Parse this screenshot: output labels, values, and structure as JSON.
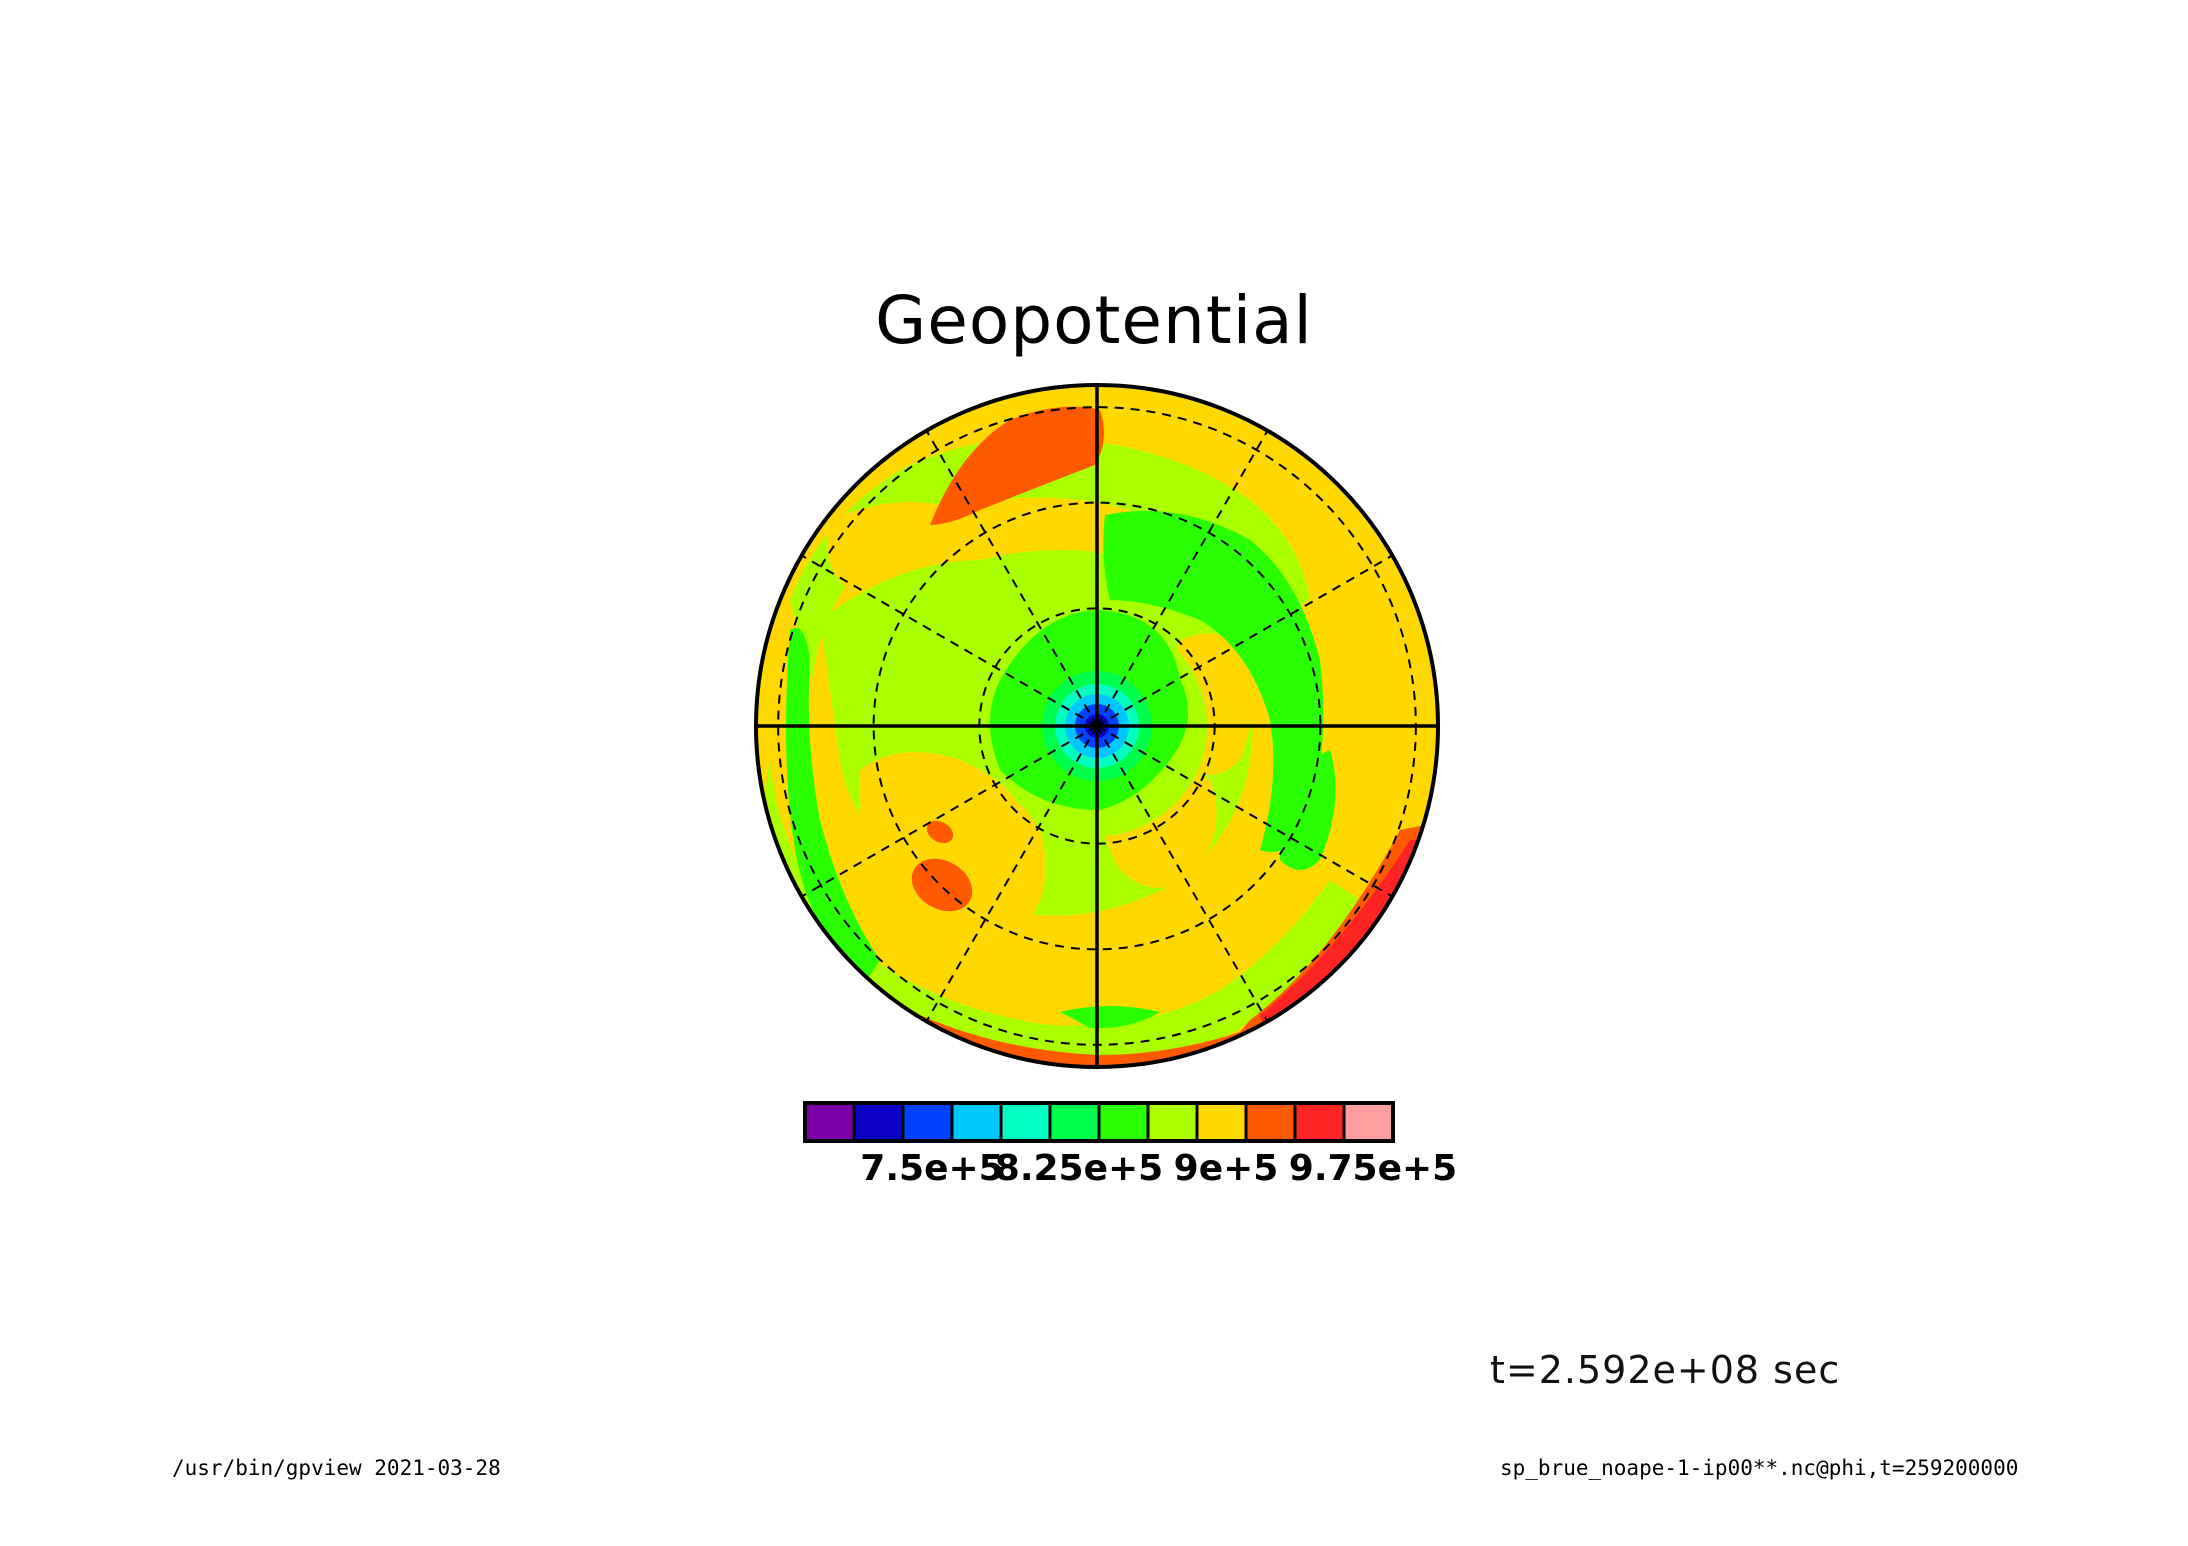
{
  "chart_data": {
    "type": "heatmap",
    "title": "Geopotential",
    "projection": "polar stereographic",
    "grid": true,
    "colorbar": {
      "colors": [
        "#7b00a8",
        "#0a00c8",
        "#0042ff",
        "#00c8ff",
        "#00ffc0",
        "#00ff4c",
        "#2aff00",
        "#aaff00",
        "#ffd800",
        "#ff5a00",
        "#ff2424",
        "#ff9e9e"
      ],
      "tick_labels": [
        "7.5e+5",
        "8.25e+5",
        "9e+5",
        "9.75e+5"
      ],
      "tick_values": [
        750000,
        825000,
        900000,
        975000
      ],
      "interval": 25000
    },
    "field_regions": [
      {
        "level": 7,
        "description": "broad background band"
      },
      {
        "level": 8,
        "description": "yellow rings and lobes"
      },
      {
        "level": 9,
        "description": "orange highs near north-west, south-west and south-east edge"
      },
      {
        "level": 10,
        "description": "red high along south-east rim"
      },
      {
        "level": 6,
        "description": "green ring near pole"
      },
      {
        "level": 1,
        "description": "polar low center"
      }
    ]
  },
  "annotations": {
    "time": "t=2.592e+08 sec",
    "footer_left": "/usr/bin/gpview  2021-03-28",
    "footer_right": "sp_brue_noape-1-ip00**.nc@phi,t=259200000"
  }
}
